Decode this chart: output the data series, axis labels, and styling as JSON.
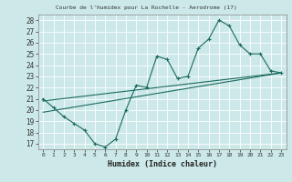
{
  "title": "Courbe de l'humidex pour La Rochelle - Aerodrome (17)",
  "xlabel": "Humidex (Indice chaleur)",
  "xlim": [
    -0.5,
    23.5
  ],
  "ylim": [
    16.5,
    28.5
  ],
  "xticks": [
    0,
    1,
    2,
    3,
    4,
    5,
    6,
    7,
    8,
    9,
    10,
    11,
    12,
    13,
    14,
    15,
    16,
    17,
    18,
    19,
    20,
    21,
    22,
    23
  ],
  "yticks": [
    17,
    18,
    19,
    20,
    21,
    22,
    23,
    24,
    25,
    26,
    27,
    28
  ],
  "bg_color": "#cce8e8",
  "line_color": "#1a6b5e",
  "grid_color": "#aad4d4",
  "line1": {
    "x": [
      0,
      1,
      2,
      3,
      4,
      5,
      6,
      7,
      8,
      9,
      10,
      11,
      12,
      13,
      14,
      15,
      16,
      17,
      18,
      19,
      20,
      21,
      22,
      23
    ],
    "y": [
      21.0,
      20.2,
      19.4,
      18.8,
      18.2,
      17.0,
      16.7,
      17.4,
      20.0,
      22.2,
      22.0,
      24.8,
      24.5,
      22.8,
      23.0,
      25.5,
      26.3,
      28.0,
      27.5,
      25.8,
      25.0,
      25.0,
      23.5,
      23.3
    ]
  },
  "line2": {
    "x": [
      0,
      23
    ],
    "y": [
      20.8,
      23.3
    ]
  },
  "line3": {
    "x": [
      0,
      23
    ],
    "y": [
      19.8,
      23.3
    ]
  }
}
